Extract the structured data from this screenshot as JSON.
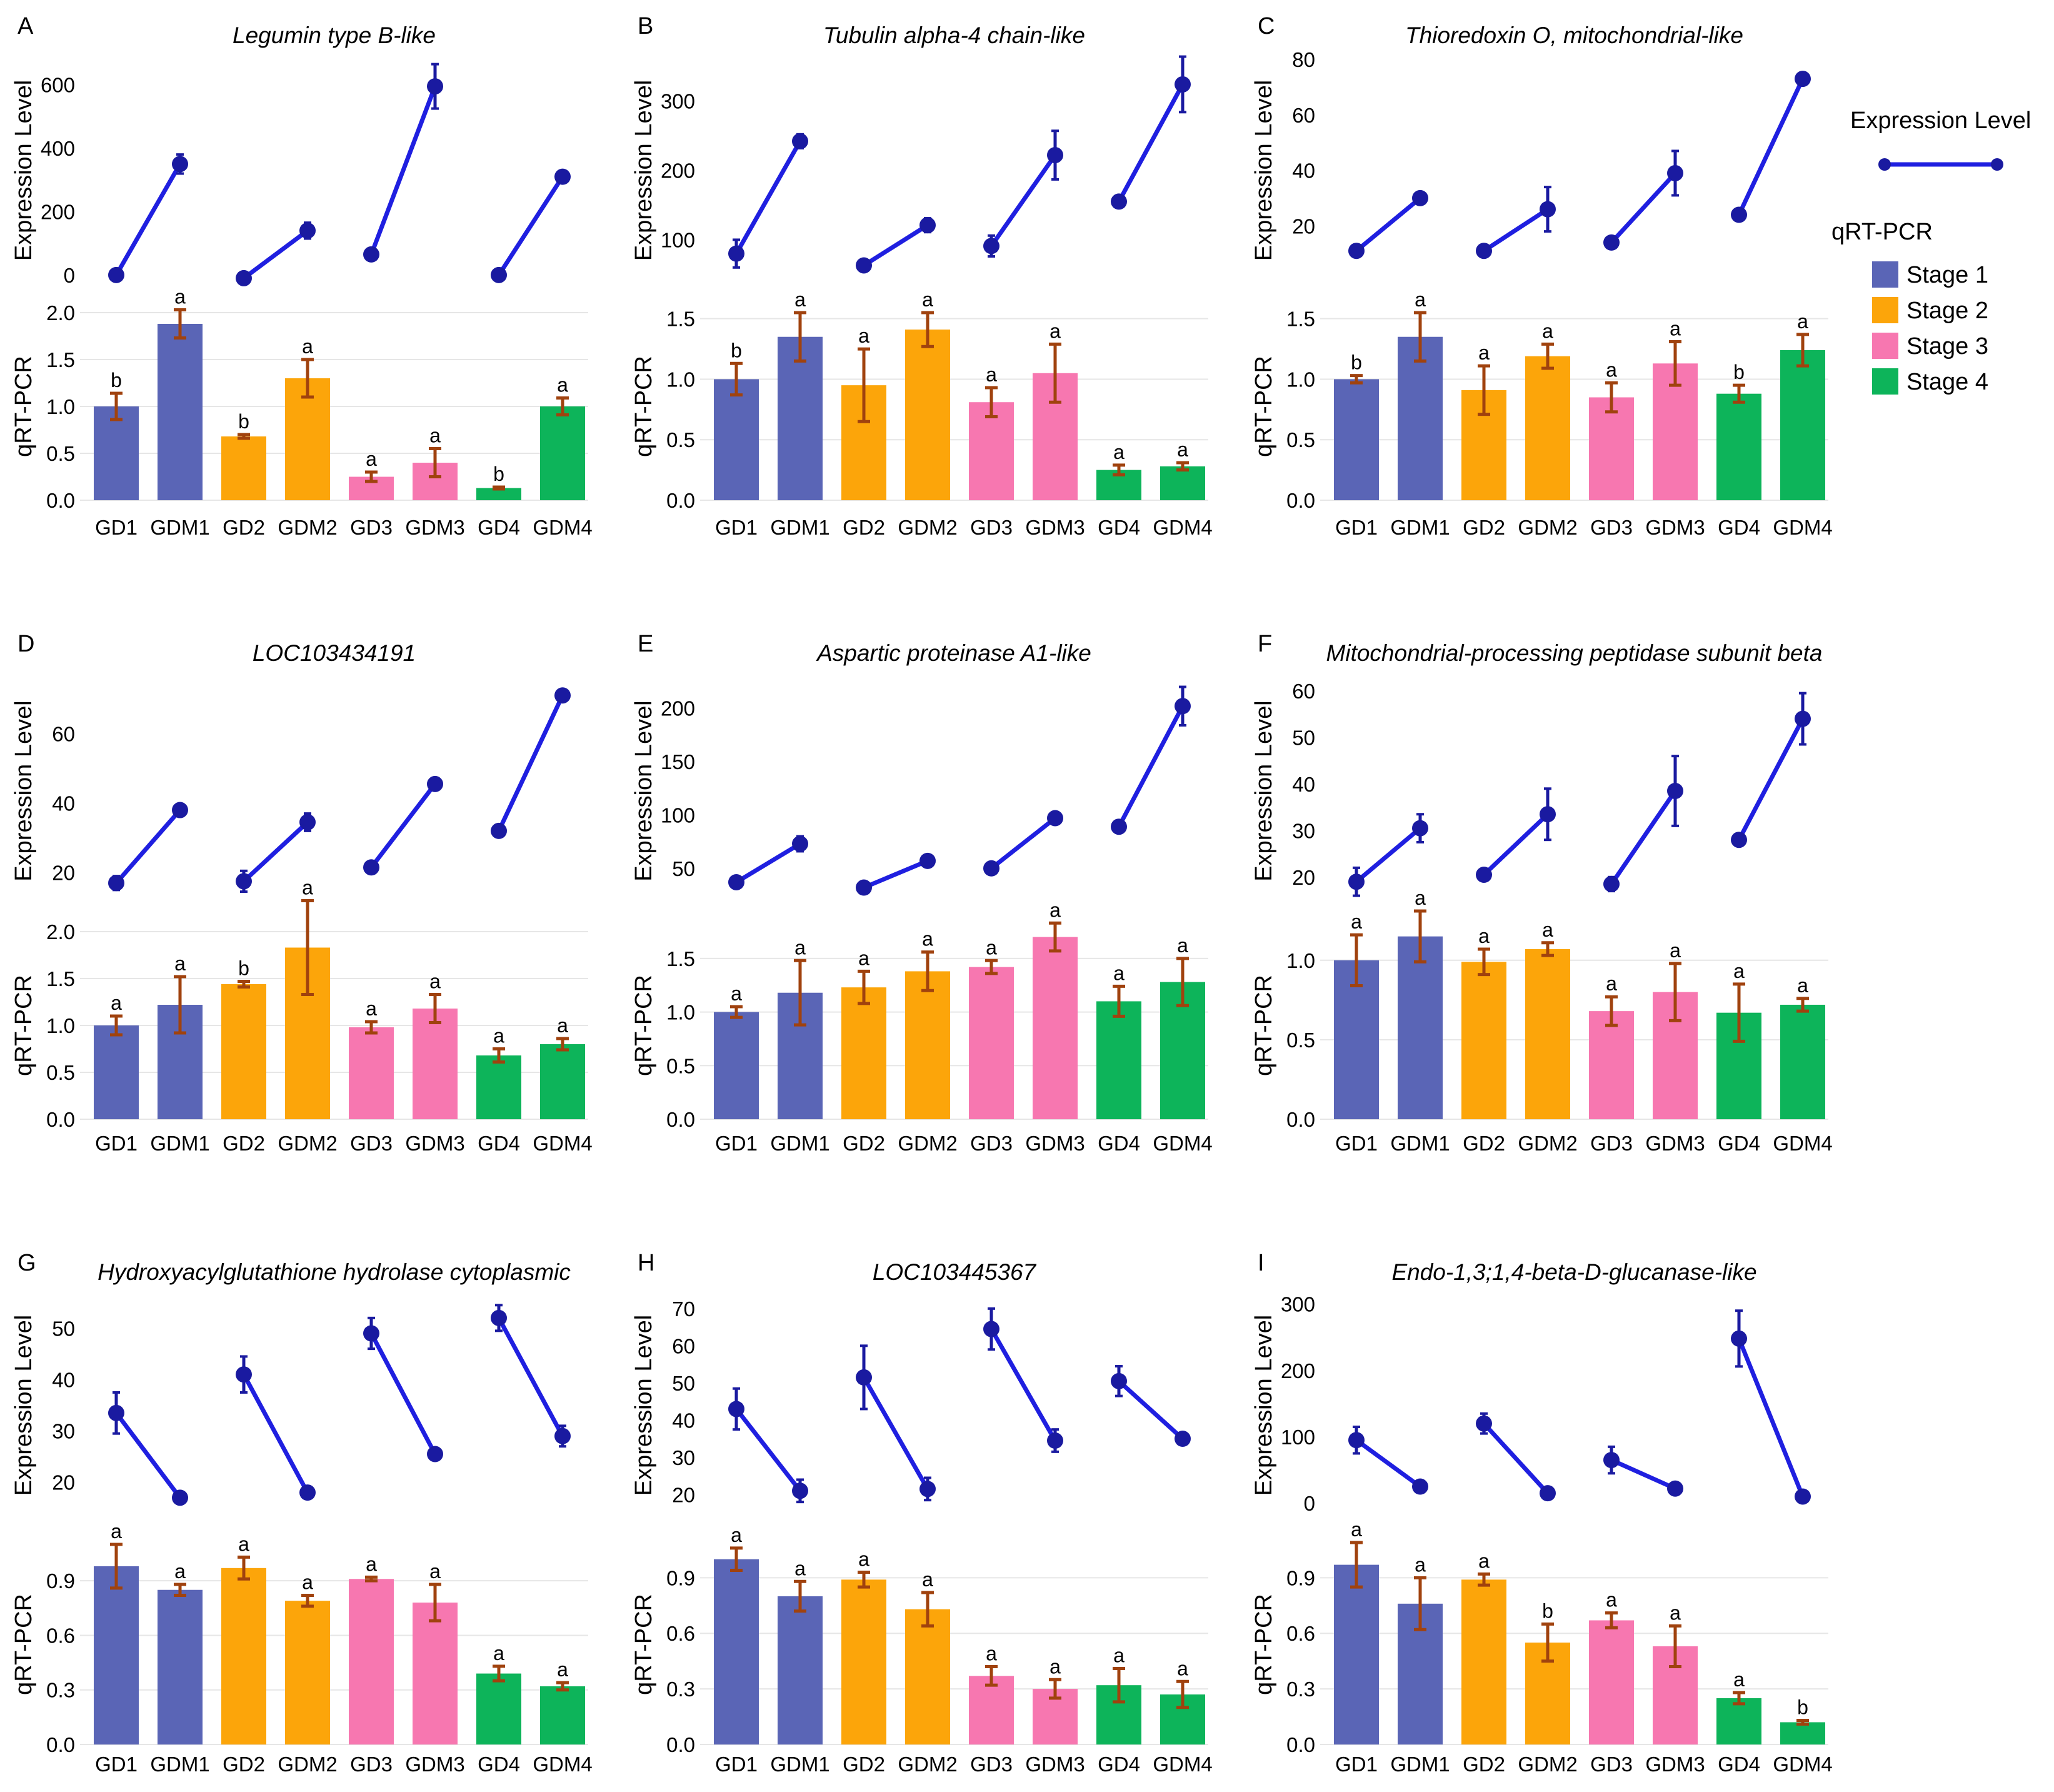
{
  "colors": {
    "line": "#1f1fe0",
    "point": "#1a1aa0",
    "stage1": "#5a65b6",
    "stage2": "#fca50a",
    "stage3": "#f777b0",
    "stage4": "#0db45a",
    "bar_error": "#a0420e",
    "grid": "#e6e6e6",
    "text": "#000000"
  },
  "legend": {
    "line_title": "Expression Level",
    "bar_title": "qRT-PCR",
    "stages": [
      {
        "label": "Stage 1",
        "color": "#5a65b6"
      },
      {
        "label": "Stage 2",
        "color": "#fca50a"
      },
      {
        "label": "Stage 3",
        "color": "#f777b0"
      },
      {
        "label": "Stage 4",
        "color": "#0db45a"
      }
    ]
  },
  "chart_data": [
    {
      "panel": "A",
      "title": "Legumin type B-like",
      "type": "bar+line",
      "categories": [
        "GD1",
        "GDM1",
        "GD2",
        "GDM2",
        "GD3",
        "GDM3",
        "GD4",
        "GDM4"
      ],
      "line": {
        "ylabel": "Expression Level",
        "ylim": [
          -20,
          680
        ],
        "ticks": [
          0,
          200,
          400,
          600
        ],
        "values": [
          0,
          350,
          -10,
          140,
          65,
          595,
          0,
          310
        ],
        "errors": [
          0,
          30,
          0,
          25,
          0,
          70,
          0,
          10
        ]
      },
      "bar": {
        "ylabel": "qRT-PCR",
        "ylim": [
          0,
          2.0
        ],
        "ticks": [
          0.0,
          0.5,
          1.0,
          1.5,
          2.0
        ],
        "tick_labels": [
          "0.0",
          "0.5",
          "1.0",
          "1.5",
          "2.0"
        ],
        "values": [
          1.0,
          1.88,
          0.68,
          1.3,
          0.25,
          0.4,
          0.13,
          1.0
        ],
        "errors": [
          0.14,
          0.15,
          0.02,
          0.2,
          0.05,
          0.15,
          0.01,
          0.09
        ],
        "letters": [
          "b",
          "a",
          "b",
          "a",
          "a",
          "a",
          "b",
          "a"
        ]
      }
    },
    {
      "panel": "B",
      "title": "Tubulin alpha-4 chain-like",
      "type": "bar+line",
      "categories": [
        "GD1",
        "GDM1",
        "GD2",
        "GDM2",
        "GD3",
        "GDM3",
        "GD4",
        "GDM4"
      ],
      "line": {
        "ylabel": "Expression Level",
        "ylim": [
          40,
          360
        ],
        "ticks": [
          100,
          200,
          300
        ],
        "values": [
          80,
          242,
          63,
          121,
          91,
          222,
          155,
          324
        ],
        "errors": [
          20,
          10,
          0,
          10,
          15,
          35,
          0,
          40
        ]
      },
      "bar": {
        "ylabel": "qRT-PCR",
        "ylim": [
          0,
          1.55
        ],
        "ticks": [
          0.0,
          0.5,
          1.0,
          1.5
        ],
        "tick_labels": [
          "0.0",
          "0.5",
          "1.0",
          "1.5"
        ],
        "values": [
          1.0,
          1.35,
          0.95,
          1.41,
          0.81,
          1.05,
          0.25,
          0.28
        ],
        "errors": [
          0.13,
          0.2,
          0.3,
          0.14,
          0.12,
          0.24,
          0.04,
          0.03
        ],
        "letters": [
          "b",
          "a",
          "a",
          "a",
          "a",
          "a",
          "a",
          "a"
        ]
      }
    },
    {
      "panel": "C",
      "title": "Thioredoxin O, mitochondrial-like",
      "type": "bar+line",
      "categories": [
        "GD1",
        "GDM1",
        "GD2",
        "GDM2",
        "GD3",
        "GDM3",
        "GD4",
        "GDM4"
      ],
      "line": {
        "ylabel": "Expression Level",
        "ylim": [
          0,
          80
        ],
        "ticks": [
          20,
          40,
          60,
          80
        ],
        "values": [
          11,
          30,
          11,
          26,
          14,
          39,
          24,
          73
        ],
        "errors": [
          2,
          0,
          0,
          8,
          2,
          8,
          0,
          2
        ]
      },
      "bar": {
        "ylabel": "qRT-PCR",
        "ylim": [
          0,
          1.55
        ],
        "ticks": [
          0.0,
          0.5,
          1.0,
          1.5
        ],
        "tick_labels": [
          "0.0",
          "0.5",
          "1.0",
          "1.5"
        ],
        "values": [
          1.0,
          1.35,
          0.91,
          1.19,
          0.85,
          1.13,
          0.88,
          1.24
        ],
        "errors": [
          0.03,
          0.2,
          0.2,
          0.1,
          0.12,
          0.18,
          0.07,
          0.13
        ],
        "letters": [
          "b",
          "a",
          "a",
          "a",
          "a",
          "a",
          "b",
          "a"
        ]
      }
    },
    {
      "panel": "D",
      "title": "LOC103434191",
      "type": "bar+line",
      "categories": [
        "GD1",
        "GDM1",
        "GD2",
        "GDM2",
        "GD3",
        "GDM3",
        "GD4",
        "GDM4"
      ],
      "line": {
        "ylabel": "Expression Level",
        "ylim": [
          12,
          75
        ],
        "ticks": [
          20,
          40,
          60
        ],
        "values": [
          17,
          38,
          17.5,
          34.5,
          21.5,
          45.5,
          32,
          71
        ],
        "errors": [
          2,
          1.5,
          3,
          2.5,
          0,
          1.5,
          1.5,
          0
        ]
      },
      "bar": {
        "ylabel": "qRT-PCR",
        "ylim": [
          0,
          2.0
        ],
        "ticks": [
          0.0,
          0.5,
          1.0,
          1.5,
          2.0
        ],
        "tick_labels": [
          "0.0",
          "0.5",
          "1.0",
          "1.5",
          "2.0"
        ],
        "values": [
          1.0,
          1.22,
          1.44,
          1.83,
          0.98,
          1.18,
          0.68,
          0.8
        ],
        "errors": [
          0.1,
          0.3,
          0.03,
          0.5,
          0.06,
          0.15,
          0.07,
          0.06
        ],
        "letters": [
          "a",
          "a",
          "b",
          "a",
          "a",
          "a",
          "a",
          "a"
        ]
      }
    },
    {
      "panel": "E",
      "title": "Aspartic proteinase A1-like",
      "type": "bar+line",
      "categories": [
        "GD1",
        "GDM1",
        "GD2",
        "GDM2",
        "GD3",
        "GDM3",
        "GD4",
        "GDM4"
      ],
      "line": {
        "ylabel": "Expression Level",
        "ylim": [
          20,
          225
        ],
        "ticks": [
          50,
          100,
          150,
          200
        ],
        "values": [
          37,
          73,
          32,
          57,
          50,
          97,
          89,
          202
        ],
        "errors": [
          0,
          7,
          0,
          5,
          0,
          0,
          0,
          18
        ]
      },
      "bar": {
        "ylabel": "qRT-PCR",
        "ylim": [
          0,
          1.75
        ],
        "ticks": [
          0.0,
          0.5,
          1.0,
          1.5
        ],
        "tick_labels": [
          "0.0",
          "0.5",
          "1.0",
          "1.5"
        ],
        "values": [
          1.0,
          1.18,
          1.23,
          1.38,
          1.42,
          1.7,
          1.1,
          1.28
        ],
        "errors": [
          0.05,
          0.3,
          0.15,
          0.18,
          0.06,
          0.13,
          0.14,
          0.22
        ],
        "letters": [
          "a",
          "a",
          "a",
          "a",
          "a",
          "a",
          "a",
          "a"
        ]
      }
    },
    {
      "panel": "F",
      "title": "Mitochondrial-processing peptidase subunit beta",
      "type": "bar+line",
      "categories": [
        "GD1",
        "GDM1",
        "GD2",
        "GDM2",
        "GD3",
        "GDM3",
        "GD4",
        "GDM4"
      ],
      "line": {
        "ylabel": "Expression Level",
        "ylim": [
          15,
          62
        ],
        "ticks": [
          20,
          30,
          40,
          50,
          60
        ],
        "values": [
          19,
          30.5,
          20.5,
          33.5,
          18.5,
          38.5,
          28,
          54
        ],
        "errors": [
          3,
          3,
          0,
          5.5,
          1.5,
          7.5,
          0,
          5.5
        ]
      },
      "bar": {
        "ylabel": "qRT-PCR",
        "ylim": [
          0,
          1.18
        ],
        "ticks": [
          0.0,
          0.5,
          1.0
        ],
        "tick_labels": [
          "0.0",
          "0.5",
          "1.0"
        ],
        "values": [
          1.0,
          1.15,
          0.99,
          1.07,
          0.68,
          0.8,
          0.67,
          0.72
        ],
        "errors": [
          0.16,
          0.16,
          0.08,
          0.04,
          0.09,
          0.18,
          0.18,
          0.04
        ],
        "letters": [
          "a",
          "a",
          "a",
          "a",
          "a",
          "a",
          "a",
          "a"
        ]
      }
    },
    {
      "panel": "G",
      "title": "Hydroxyacylglutathione hydrolase cytoplasmic",
      "type": "bar+line",
      "categories": [
        "GD1",
        "GDM1",
        "GD2",
        "GDM2",
        "GD3",
        "GDM3",
        "GD4",
        "GDM4"
      ],
      "line": {
        "ylabel": "Expression Level",
        "ylim": [
          14,
          56
        ],
        "ticks": [
          20,
          30,
          40,
          50
        ],
        "values": [
          33.5,
          17,
          41,
          18,
          49,
          25.5,
          52,
          29
        ],
        "errors": [
          4,
          0,
          3.5,
          0,
          3,
          0,
          2.5,
          2
        ]
      },
      "bar": {
        "ylabel": "qRT-PCR",
        "ylim": [
          0,
          1.1
        ],
        "ticks": [
          0.0,
          0.3,
          0.6,
          0.9
        ],
        "tick_labels": [
          "0.0",
          "0.3",
          "0.6",
          "0.9"
        ],
        "values": [
          0.98,
          0.85,
          0.97,
          0.79,
          0.91,
          0.78,
          0.39,
          0.32
        ],
        "errors": [
          0.12,
          0.03,
          0.06,
          0.03,
          0.01,
          0.1,
          0.04,
          0.02
        ],
        "letters": [
          "a",
          "a",
          "a",
          "a",
          "a",
          "a",
          "a",
          "a"
        ]
      }
    },
    {
      "panel": "H",
      "title": "LOC103445367",
      "type": "bar+line",
      "categories": [
        "GD1",
        "GDM1",
        "GD2",
        "GDM2",
        "GD3",
        "GDM3",
        "GD4",
        "GDM4"
      ],
      "line": {
        "ylabel": "Expression Level",
        "ylim": [
          15,
          73
        ],
        "ticks": [
          20,
          30,
          40,
          50,
          60,
          70
        ],
        "values": [
          43,
          21,
          51.5,
          21.5,
          64.5,
          34.5,
          50.5,
          35
        ],
        "errors": [
          5.5,
          3,
          8.5,
          3,
          5.5,
          3,
          4,
          0
        ]
      },
      "bar": {
        "ylabel": "qRT-PCR",
        "ylim": [
          0,
          1.08
        ],
        "ticks": [
          0.0,
          0.3,
          0.6,
          0.9
        ],
        "tick_labels": [
          "0.0",
          "0.3",
          "0.6",
          "0.9"
        ],
        "values": [
          1.0,
          0.8,
          0.89,
          0.73,
          0.37,
          0.3,
          0.32,
          0.27
        ],
        "errors": [
          0.06,
          0.08,
          0.04,
          0.09,
          0.05,
          0.05,
          0.09,
          0.07
        ],
        "letters": [
          "a",
          "a",
          "a",
          "a",
          "a",
          "a",
          "a",
          "a"
        ]
      }
    },
    {
      "panel": "I",
      "title": "Endo-1,3;1,4-beta-D-glucanase-like",
      "type": "bar+line",
      "categories": [
        "GD1",
        "GDM1",
        "GD2",
        "GDM2",
        "GD3",
        "GDM3",
        "GD4",
        "GDM4"
      ],
      "line": {
        "ylabel": "Expression Level",
        "ylim": [
          -15,
          310
        ],
        "ticks": [
          0,
          100,
          200,
          300
        ],
        "values": [
          95,
          25,
          120,
          15,
          65,
          22,
          248,
          10
        ],
        "errors": [
          20,
          0,
          15,
          0,
          20,
          0,
          42,
          0
        ]
      },
      "bar": {
        "ylabel": "qRT-PCR",
        "ylim": [
          0,
          1.08
        ],
        "ticks": [
          0.0,
          0.3,
          0.6,
          0.9
        ],
        "tick_labels": [
          "0.0",
          "0.3",
          "0.6",
          "0.9"
        ],
        "values": [
          0.97,
          0.76,
          0.89,
          0.55,
          0.67,
          0.53,
          0.25,
          0.12
        ],
        "errors": [
          0.12,
          0.14,
          0.03,
          0.1,
          0.04,
          0.11,
          0.03,
          0.01
        ],
        "letters": [
          "a",
          "a",
          "a",
          "b",
          "a",
          "a",
          "a",
          "b"
        ]
      }
    }
  ]
}
